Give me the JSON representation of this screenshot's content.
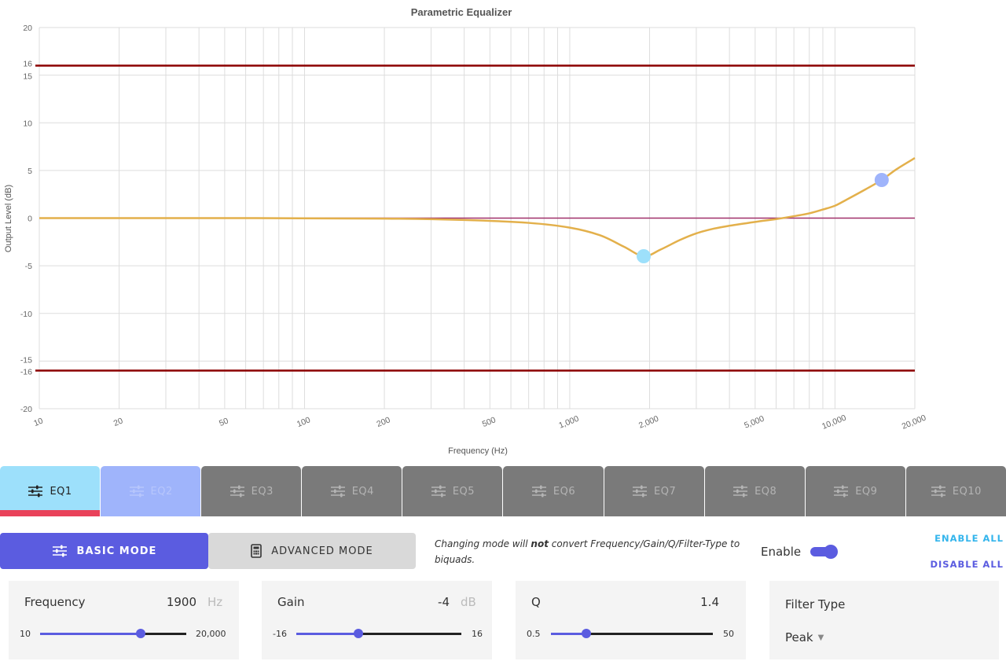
{
  "chart_data": {
    "type": "line",
    "title": "Parametric Equalizer",
    "xlabel": "Frequency (Hz)",
    "ylabel": "Output Level (dB)",
    "xscale": "log",
    "xlim": [
      10,
      20000
    ],
    "ylim": [
      -20,
      20
    ],
    "x_ticks": [
      10,
      20,
      50,
      100,
      200,
      500,
      1000,
      2000,
      5000,
      10000,
      20000
    ],
    "x_tick_labels": [
      "10",
      "20",
      "50",
      "100",
      "200",
      "500",
      "1,000",
      "2,000",
      "5,000",
      "10,000",
      "20,000"
    ],
    "y_ticks": [
      20,
      16,
      15,
      10,
      5,
      0,
      -5,
      -10,
      -15,
      -16,
      -20
    ],
    "grid": true,
    "limit_lines": [
      16,
      -16
    ],
    "series": [
      {
        "name": "",
        "x": [
          10,
          50,
          200,
          400,
          700,
          1000,
          1300,
          1600,
          1900,
          2200,
          2600,
          3000,
          3500,
          4000,
          5000,
          6000,
          7000,
          8000,
          9000,
          10000,
          11000,
          13000,
          15000,
          17000,
          20000
        ],
        "values": [
          0,
          0,
          -0.05,
          -0.2,
          -0.5,
          -1,
          -1.8,
          -3,
          -4,
          -3.3,
          -2.3,
          -1.6,
          -1.1,
          -0.8,
          -0.4,
          -0.1,
          0.2,
          0.5,
          0.9,
          1.3,
          1.9,
          3,
          4,
          5.1,
          6.3
        ],
        "color": "#e3b04b"
      }
    ],
    "points": [
      {
        "label": "EQ1",
        "x": 1900,
        "y": -4,
        "color": "#9de0fb"
      },
      {
        "label": "EQ2",
        "x": 15000,
        "y": 4,
        "color": "#9fb4fb"
      }
    ],
    "colors": {
      "limit": "#8b0000",
      "zero_line": "#a0306a",
      "grid": "#dddddd"
    }
  },
  "tabs": [
    {
      "label": "EQ1",
      "state": "active"
    },
    {
      "label": "EQ2",
      "state": "enabled"
    },
    {
      "label": "EQ3",
      "state": "disabled"
    },
    {
      "label": "EQ4",
      "state": "disabled"
    },
    {
      "label": "EQ5",
      "state": "disabled"
    },
    {
      "label": "EQ6",
      "state": "disabled"
    },
    {
      "label": "EQ7",
      "state": "disabled"
    },
    {
      "label": "EQ8",
      "state": "disabled"
    },
    {
      "label": "EQ9",
      "state": "disabled"
    },
    {
      "label": "EQ10",
      "state": "disabled"
    }
  ],
  "modes": {
    "basic_label": "BASIC MODE",
    "advanced_label": "ADVANCED MODE",
    "basic_icon": "sliders-icon",
    "advanced_icon": "calculator-icon"
  },
  "note": {
    "before": "Changing mode will ",
    "emphasis": "not",
    "after": " convert Frequency/Gain/Q/Filter-Type to biquads."
  },
  "enable": {
    "label": "Enable",
    "on": true
  },
  "links": {
    "enable_all": "ENABLE ALL",
    "disable_all": "DISABLE ALL"
  },
  "controls": {
    "frequency": {
      "label": "Frequency",
      "value": "1900",
      "unit": "Hz",
      "min": "10",
      "max": "20,000",
      "position": 0.686
    },
    "gain": {
      "label": "Gain",
      "value": "-4",
      "unit": "dB",
      "min": "-16",
      "max": "16",
      "position": 0.375
    },
    "q": {
      "label": "Q",
      "value": "1.4",
      "min": "0.5",
      "max": "50",
      "position": 0.218
    },
    "filter_type": {
      "label": "Filter Type",
      "value": "Peak"
    }
  },
  "theme": {
    "accent": "#5b5ce0",
    "tab_active": "#9de0fb",
    "tab_enabled": "#9fb4fb",
    "tab_disabled": "#7a7a7a",
    "active_bar": "#e9425a",
    "link_enable": "#34b5ec"
  }
}
